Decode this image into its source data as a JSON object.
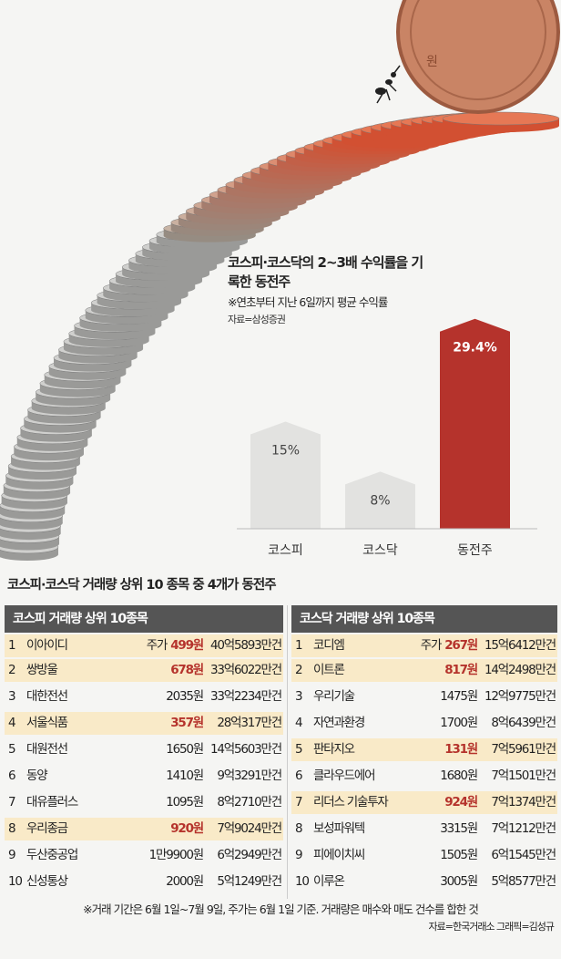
{
  "chart_data": {
    "type": "bar",
    "title": "코스피·코스닥의 2~3배 수익률을 기록한 동전주",
    "subtitle": "※연초부터 지난 6일까지 평균 수익률",
    "source": "자료=삼성증권",
    "categories": [
      "코스피",
      "코스닥",
      "동전주"
    ],
    "values": [
      15,
      8,
      29.4
    ],
    "value_labels": [
      "15%",
      "8%",
      "29.4%"
    ],
    "colors": [
      "#e2e2e0",
      "#e2e2e0",
      "#b5332c"
    ],
    "ylim": [
      0,
      30
    ]
  },
  "heading": "코스피·코스닥 거래량 상위 10 종목 중 4개가 동전주",
  "kospi": {
    "title": "코스피 거래량 상위 10종목",
    "price_prefix": "주가",
    "rows": [
      {
        "rank": "1",
        "name": "이아이디",
        "price": "499원",
        "volume": "40억5893만건",
        "penny": true
      },
      {
        "rank": "2",
        "name": "쌍방울",
        "price": "678원",
        "volume": "33억6022만건",
        "penny": true
      },
      {
        "rank": "3",
        "name": "대한전선",
        "price": "2035원",
        "volume": "33억2234만건",
        "penny": false
      },
      {
        "rank": "4",
        "name": "서울식품",
        "price": "357원",
        "volume": "28억317만건",
        "penny": true
      },
      {
        "rank": "5",
        "name": "대원전선",
        "price": "1650원",
        "volume": "14억5603만건",
        "penny": false
      },
      {
        "rank": "6",
        "name": "동양",
        "price": "1410원",
        "volume": "9억3291만건",
        "penny": false
      },
      {
        "rank": "7",
        "name": "대유플러스",
        "price": "1095원",
        "volume": "8억2710만건",
        "penny": false
      },
      {
        "rank": "8",
        "name": "우리종금",
        "price": "920원",
        "volume": "7억9024만건",
        "penny": true
      },
      {
        "rank": "9",
        "name": "두산중공업",
        "price": "1만9900원",
        "volume": "6억2949만건",
        "penny": false
      },
      {
        "rank": "10",
        "name": "신성통상",
        "price": "2000원",
        "volume": "5억1249만건",
        "penny": false
      }
    ]
  },
  "kosdaq": {
    "title": "코스닥 거래량 상위 10종목",
    "price_prefix": "주가",
    "rows": [
      {
        "rank": "1",
        "name": "코디엠",
        "price": "267원",
        "volume": "15억6412만건",
        "penny": true
      },
      {
        "rank": "2",
        "name": "이트론",
        "price": "817원",
        "volume": "14억2498만건",
        "penny": true
      },
      {
        "rank": "3",
        "name": "우리기술",
        "price": "1475원",
        "volume": "12억9775만건",
        "penny": false
      },
      {
        "rank": "4",
        "name": "자연과환경",
        "price": "1700원",
        "volume": "8억6439만건",
        "penny": false
      },
      {
        "rank": "5",
        "name": "판타지오",
        "price": "131원",
        "volume": "7억5961만건",
        "penny": true
      },
      {
        "rank": "6",
        "name": "클라우드에어",
        "price": "1680원",
        "volume": "7억1501만건",
        "penny": false
      },
      {
        "rank": "7",
        "name": "리더스 기술투자",
        "price": "924원",
        "volume": "7억1374만건",
        "penny": true
      },
      {
        "rank": "8",
        "name": "보성파워텍",
        "price": "3315원",
        "volume": "7억1212만건",
        "penny": false
      },
      {
        "rank": "9",
        "name": "피에이치씨",
        "price": "1505원",
        "volume": "6억1545만건",
        "penny": false
      },
      {
        "rank": "10",
        "name": "이루온",
        "price": "3005원",
        "volume": "5억8577만건",
        "penny": false
      }
    ]
  },
  "footnote": "※거래 기간은 6월 1일~7월 9일, 주가는 6월 1일 기준. 거래량은 매수와 매도 건수를 합한 것",
  "credit": "자료=한국거래소  그래픽=김성규",
  "coin_text": "원"
}
